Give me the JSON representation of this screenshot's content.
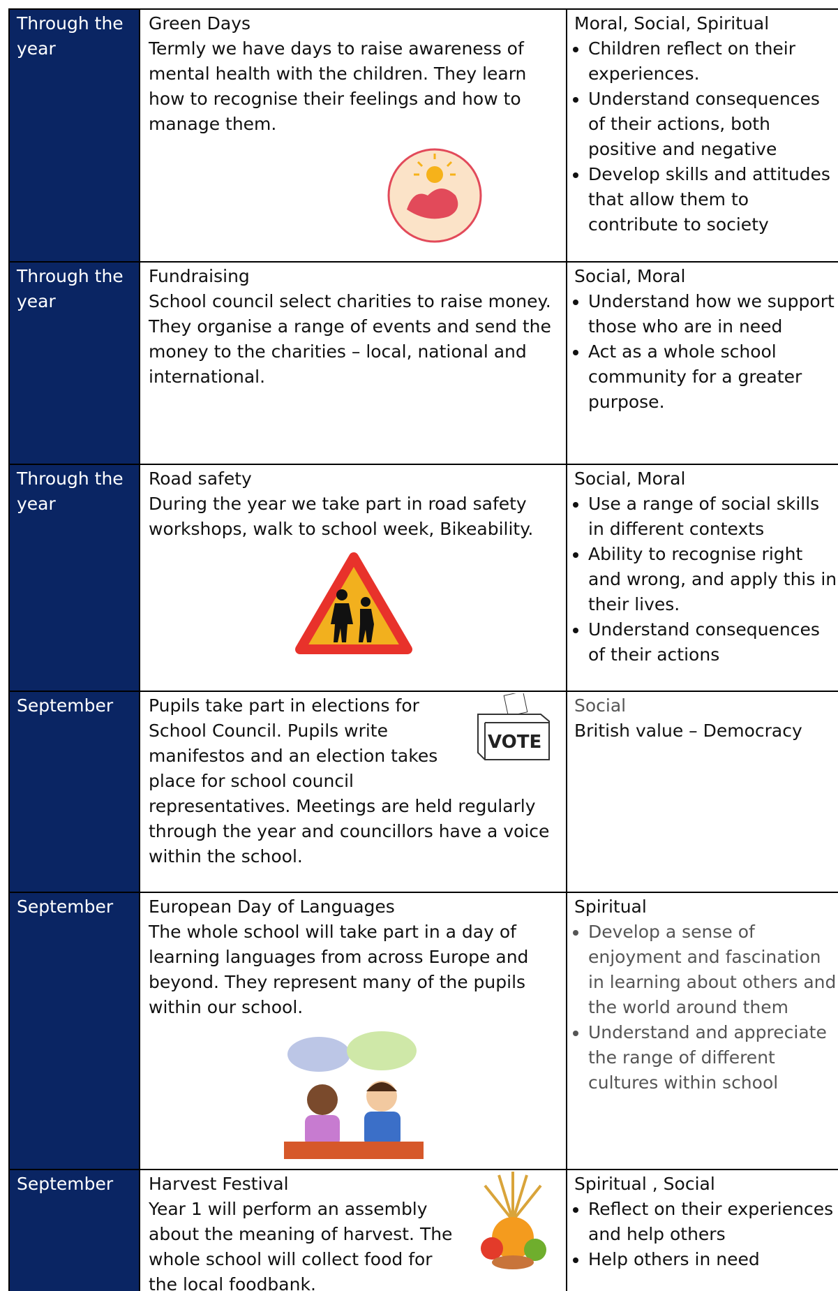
{
  "table": {
    "rows": [
      {
        "when": "Through the year",
        "title": "Green Days",
        "description": "Termly we have days to raise awareness of mental health with the children. They learn how to recognise their feelings and how to manage them.",
        "values_heading": "Moral, Social, Spiritual",
        "points": [
          "Children reflect on their experiences.",
          "Understand consequences of their actions, both positive and negative",
          "Develop skills and attitudes that allow them to contribute to society"
        ]
      },
      {
        "when": "Through the year",
        "title": "Fundraising",
        "description": "School council select charities to raise money. They organise a range of events and send the money to the charities – local, national and international.",
        "values_heading": "Social, Moral",
        "points": [
          "Understand how we support those who are in need",
          "Act as a whole school community for a greater purpose."
        ]
      },
      {
        "when": "Through the year",
        "title": "Road safety",
        "description": "During the year we take part in road safety workshops, walk to school week, Bikeability.",
        "values_heading": "Social, Moral",
        "points": [
          "Use a range of social skills in different contexts",
          "Ability to recognise right and wrong, and apply this in their lives.",
          "Understand consequences of their actions"
        ]
      },
      {
        "when": "September",
        "description": "Pupils take part in elections for School Council. Pupils write manifestos and an election takes place for school council representatives. Meetings are held regularly through the year and councillors have a voice within the school.",
        "values_heading": "Social",
        "note": "British value – Democracy",
        "points": []
      },
      {
        "when": "September",
        "title": "European Day of Languages",
        "description": "The whole school will take part in a day of learning languages from across Europe and beyond. They represent many of the pupils within our school.",
        "values_heading": "Spiritual",
        "points": [
          "Develop a sense of enjoyment and fascination in learning about others and the world around them",
          "Understand and appreciate the range of different cultures within school"
        ]
      },
      {
        "when": "September",
        "title": "Harvest Festival",
        "description": "Year 1 will perform an assembly about the meaning of harvest. The whole school will collect food for the local foodbank.",
        "values_heading": "Spiritual , Social",
        "points": [
          "Reflect on their experiences and help others",
          "Help others in need"
        ]
      }
    ]
  }
}
